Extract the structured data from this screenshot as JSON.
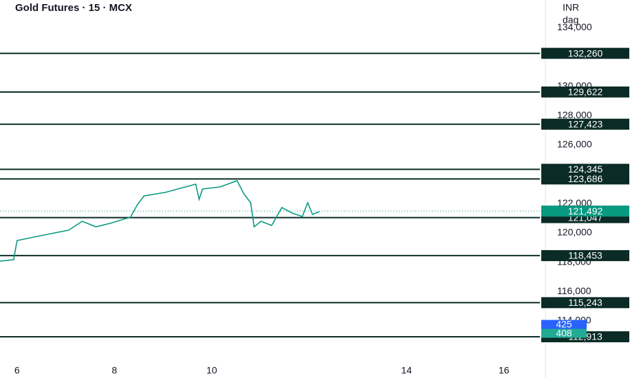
{
  "chart_data": {
    "type": "line",
    "title": "Gold Futures · 15 · MCX",
    "currency": "INR",
    "unit": "dag",
    "color": "#089981",
    "xlim": [
      5.65,
      16.74
    ],
    "xticks": [
      6,
      8,
      10,
      14,
      16
    ],
    "ylim": [
      110100,
      135900
    ],
    "yticks": [
      {
        "value": 114000,
        "label": "114,000"
      },
      {
        "value": 116000,
        "label": "116,000"
      },
      {
        "value": 118000,
        "label": "118,000"
      },
      {
        "value": 120000,
        "label": "120,000"
      },
      {
        "value": 122000,
        "label": "122,000"
      },
      {
        "value": 126000,
        "label": "126,000"
      },
      {
        "value": 128000,
        "label": "128,000"
      },
      {
        "value": 130000,
        "label": "130,000"
      },
      {
        "value": 134000,
        "label": "134,000"
      }
    ],
    "x": [
      5.65,
      5.93,
      6,
      6.49,
      7.06,
      7.34,
      7.62,
      7.91,
      8.33,
      8.47,
      8.61,
      9.04,
      9.46,
      9.67,
      9.74,
      9.81,
      10.17,
      10.52,
      10.66,
      10.8,
      10.87,
      11.01,
      11.23,
      11.44,
      11.65,
      11.86,
      11.97,
      12.07,
      12.21
    ],
    "values": [
      118078,
      118172,
      119484,
      119813,
      120188,
      120797,
      120422,
      120656,
      121078,
      121922,
      122531,
      122766,
      123141,
      123328,
      122297,
      123000,
      123141,
      123563,
      122672,
      122063,
      120422,
      120797,
      120516,
      121734,
      121359,
      121125,
      122063,
      121266,
      121453
    ],
    "levels": [
      {
        "value": 132260,
        "label": "132,260"
      },
      {
        "value": 129622,
        "label": "129,622"
      },
      {
        "value": 127423,
        "label": "127,423"
      },
      {
        "value": 124345,
        "label": "124,345"
      },
      {
        "value": 123686,
        "label": "123,686"
      },
      {
        "value": 121047,
        "label": "121,047"
      },
      {
        "value": 118453,
        "label": "118,453"
      },
      {
        "value": 115243,
        "label": "115,243"
      },
      {
        "value": 112913,
        "label": "112,913"
      }
    ],
    "level_color": "#0b2b26",
    "last_price": {
      "value": 121492,
      "label": "121,492",
      "color": "#089981"
    },
    "volume_labels": [
      {
        "value": 425,
        "label": "425",
        "color": "#2962ff"
      },
      {
        "value": 408,
        "label": "408",
        "color": "#22ab94"
      }
    ]
  }
}
